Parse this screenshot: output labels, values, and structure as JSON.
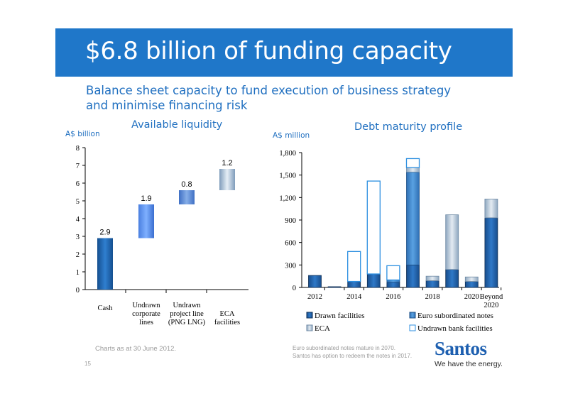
{
  "slide": {
    "title": "$6.8 billion of funding capacity",
    "subtitle_line1": "Balance sheet capacity to fund execution of business strategy",
    "subtitle_line2": "and minimise financing risk",
    "footnote_left": "Charts as at 30 June 2012.",
    "page_number": "15",
    "footnote_right_line1": "Euro subordinated notes mature in 2070.",
    "footnote_right_line2": "Santos has option to redeem the notes in 2017.",
    "logo_word": "Santos",
    "logo_tagline": "We have the energy."
  },
  "colors": {
    "title_band": "#1f77c9",
    "heading_text": "#1f6fc0",
    "drawn_facilities": "#1f5fa8",
    "euro_notes": "#3a86cc",
    "eca": "#b9c8d6",
    "undrawn_bank": "#2c8fe0"
  },
  "chart_data": [
    {
      "type": "bar",
      "subtype": "waterfall",
      "title": "Available liquidity",
      "ylabel": "A$ billion",
      "ylim": [
        0,
        8
      ],
      "yticks": [
        "0",
        "1",
        "2",
        "3",
        "4",
        "5",
        "6",
        "7",
        "8"
      ],
      "categories": [
        "Cash",
        "Undrawn corporate lines",
        "Undrawn project line (PNG LNG)",
        "ECA facilities"
      ],
      "category_labels": [
        [
          "Cash"
        ],
        [
          "Undrawn",
          "corporate",
          "lines"
        ],
        [
          "Undrawn",
          "project line",
          "(PNG LNG)"
        ],
        [
          "ECA",
          "facilities"
        ]
      ],
      "values": [
        2.9,
        1.9,
        0.8,
        1.2
      ],
      "value_labels": [
        "2.9",
        "1.9",
        "0.8",
        "1.2"
      ],
      "grid": false
    },
    {
      "type": "bar",
      "subtype": "stacked",
      "title": "Debt maturity profile",
      "ylabel": "A$ million",
      "ylim": [
        0,
        1800
      ],
      "yticks": [
        "0",
        "300",
        "600",
        "900",
        "1,200",
        "1,500",
        "1,800"
      ],
      "x": [
        "2012",
        "2013",
        "2014",
        "2015",
        "2016",
        "2017",
        "2018",
        "2019",
        "2020",
        "Beyond 2020"
      ],
      "xtick_labels": [
        "2012",
        "",
        "2014",
        "",
        "2016",
        "",
        "2018",
        "",
        "2020",
        "Beyond"
      ],
      "xtick_labels_line2": [
        "",
        "",
        "",
        "",
        "",
        "",
        "",
        "",
        "",
        "2020"
      ],
      "series": [
        {
          "name": "Drawn facilities",
          "values": [
            160,
            10,
            80,
            180,
            70,
            300,
            90,
            240,
            80,
            930
          ]
        },
        {
          "name": "Euro subordinated notes",
          "values": [
            0,
            0,
            0,
            0,
            30,
            1240,
            0,
            0,
            0,
            0
          ]
        },
        {
          "name": "ECA",
          "values": [
            0,
            0,
            0,
            0,
            0,
            60,
            60,
            730,
            60,
            250
          ]
        },
        {
          "name": "Undrawn bank facilities",
          "values": [
            0,
            0,
            400,
            1240,
            190,
            120,
            0,
            0,
            0,
            0
          ]
        }
      ],
      "legend_position": "bottom",
      "grid": false
    }
  ]
}
